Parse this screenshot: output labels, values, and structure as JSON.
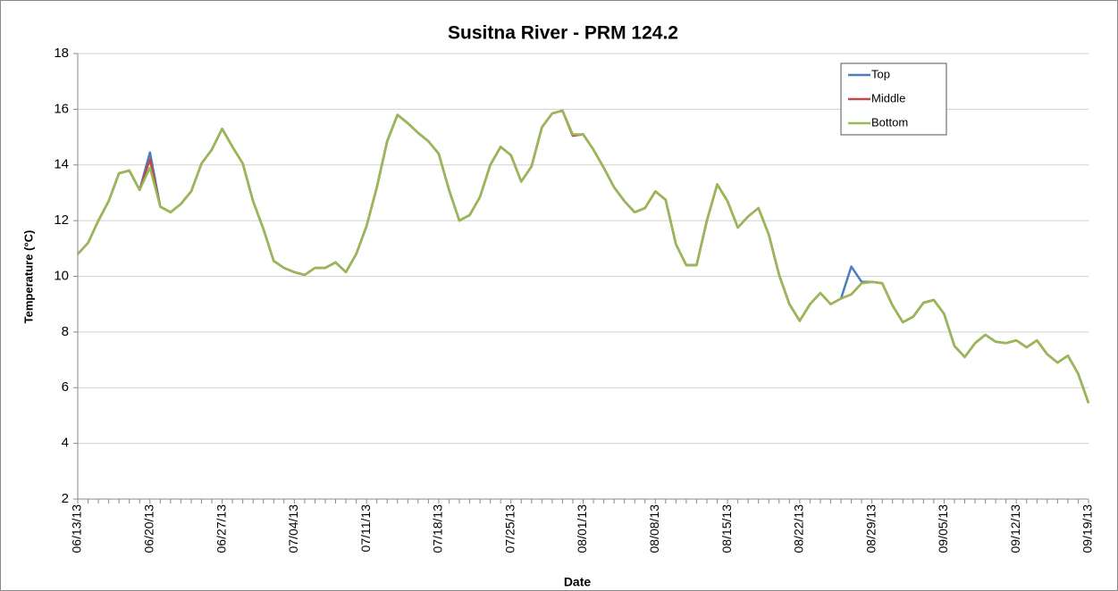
{
  "chart_data": {
    "type": "line",
    "title": "Susitna River - PRM 124.2",
    "x_label": "Date",
    "y_label": "Temperature (°C)",
    "categories": [
      "06/13/13",
      null,
      null,
      null,
      null,
      null,
      null,
      "06/20/13",
      null,
      null,
      null,
      null,
      null,
      null,
      "06/27/13",
      null,
      null,
      null,
      null,
      null,
      null,
      "07/04/13",
      null,
      null,
      null,
      null,
      null,
      null,
      "07/11/13",
      null,
      null,
      null,
      null,
      null,
      null,
      "07/18/13",
      null,
      null,
      null,
      null,
      null,
      null,
      "07/25/13",
      null,
      null,
      null,
      null,
      null,
      null,
      "08/01/13",
      null,
      null,
      null,
      null,
      null,
      null,
      "08/08/13",
      null,
      null,
      null,
      null,
      null,
      null,
      "08/15/13",
      null,
      null,
      null,
      null,
      null,
      null,
      "08/22/13",
      null,
      null,
      null,
      null,
      null,
      null,
      "08/29/13",
      null,
      null,
      null,
      null,
      null,
      null,
      "09/05/13",
      null,
      null,
      null,
      null,
      null,
      null,
      "09/12/13",
      null,
      null,
      null,
      null,
      null,
      null,
      "09/19/13"
    ],
    "series": [
      {
        "name": "Top",
        "color": "#4a7ebb",
        "values": [
          10.8,
          11.2,
          12.0,
          12.7,
          13.7,
          13.8,
          13.1,
          14.45,
          12.5,
          12.3,
          12.6,
          13.05,
          14.05,
          14.55,
          15.3,
          14.65,
          14.05,
          12.7,
          11.7,
          10.55,
          10.3,
          10.15,
          10.05,
          10.3,
          10.3,
          10.5,
          10.15,
          10.8,
          11.8,
          13.2,
          14.85,
          15.8,
          15.5,
          15.15,
          14.85,
          14.4,
          13.1,
          12.0,
          12.2,
          12.85,
          14.0,
          14.65,
          14.35,
          13.4,
          13.95,
          15.35,
          15.85,
          15.95,
          15.05,
          15.1,
          14.55,
          13.9,
          13.2,
          12.7,
          12.3,
          12.45,
          13.05,
          12.75,
          11.15,
          10.4,
          10.4,
          12.0,
          13.3,
          12.7,
          11.75,
          12.15,
          12.45,
          11.5,
          10.05,
          9.0,
          8.4,
          9.0,
          9.4,
          9.0,
          9.2,
          10.35,
          9.8,
          9.8,
          9.75,
          8.95,
          8.35,
          8.55,
          9.05,
          9.15,
          8.65,
          7.5,
          7.1,
          7.6,
          7.9,
          7.65,
          7.6,
          7.7,
          7.45,
          7.7,
          7.2,
          6.9,
          7.15,
          6.5,
          5.45
        ]
      },
      {
        "name": "Middle",
        "color": "#be4b48",
        "values": [
          10.8,
          11.2,
          12.0,
          12.7,
          13.7,
          13.8,
          13.1,
          14.2,
          12.5,
          12.3,
          12.6,
          13.05,
          14.05,
          14.55,
          15.3,
          14.65,
          14.05,
          12.7,
          11.7,
          10.55,
          10.3,
          10.15,
          10.05,
          10.3,
          10.3,
          10.5,
          10.15,
          10.8,
          11.8,
          13.2,
          14.85,
          15.8,
          15.5,
          15.15,
          14.85,
          14.4,
          13.1,
          12.0,
          12.2,
          12.85,
          14.0,
          14.65,
          14.35,
          13.4,
          13.95,
          15.35,
          15.85,
          15.95,
          15.05,
          15.1,
          14.55,
          13.9,
          13.2,
          12.7,
          12.3,
          12.45,
          13.05,
          12.75,
          11.15,
          10.4,
          10.4,
          12.0,
          13.3,
          12.7,
          11.75,
          12.15,
          12.45,
          11.5,
          10.05,
          9.0,
          8.4,
          9.0,
          9.4,
          9.0,
          9.2,
          9.35,
          9.75,
          9.8,
          9.75,
          8.95,
          8.35,
          8.55,
          9.05,
          9.15,
          8.65,
          7.5,
          7.1,
          7.6,
          7.9,
          7.65,
          7.6,
          7.7,
          7.45,
          7.7,
          7.2,
          6.9,
          7.15,
          6.5,
          5.45
        ]
      },
      {
        "name": "Bottom",
        "color": "#98b954",
        "values": [
          10.8,
          11.2,
          12.0,
          12.7,
          13.7,
          13.8,
          13.1,
          13.9,
          12.5,
          12.3,
          12.6,
          13.05,
          14.05,
          14.55,
          15.3,
          14.65,
          14.05,
          12.7,
          11.7,
          10.55,
          10.3,
          10.15,
          10.05,
          10.3,
          10.3,
          10.5,
          10.15,
          10.8,
          11.8,
          13.2,
          14.85,
          15.8,
          15.5,
          15.15,
          14.85,
          14.4,
          13.1,
          12.0,
          12.2,
          12.85,
          14.0,
          14.65,
          14.35,
          13.4,
          13.95,
          15.35,
          15.85,
          15.95,
          15.1,
          15.1,
          14.55,
          13.9,
          13.2,
          12.7,
          12.3,
          12.45,
          13.05,
          12.75,
          11.15,
          10.4,
          10.4,
          12.0,
          13.3,
          12.7,
          11.75,
          12.15,
          12.45,
          11.5,
          10.05,
          9.0,
          8.4,
          9.0,
          9.4,
          9.0,
          9.2,
          9.35,
          9.75,
          9.8,
          9.75,
          8.95,
          8.35,
          8.55,
          9.05,
          9.15,
          8.65,
          7.5,
          7.1,
          7.6,
          7.9,
          7.65,
          7.6,
          7.7,
          7.45,
          7.7,
          7.2,
          6.9,
          7.15,
          6.5,
          5.45
        ]
      }
    ],
    "ylim": [
      2,
      18
    ],
    "yticks": [
      2,
      4,
      6,
      8,
      10,
      12,
      14,
      16,
      18
    ],
    "grid": true,
    "legend": "upper right"
  }
}
